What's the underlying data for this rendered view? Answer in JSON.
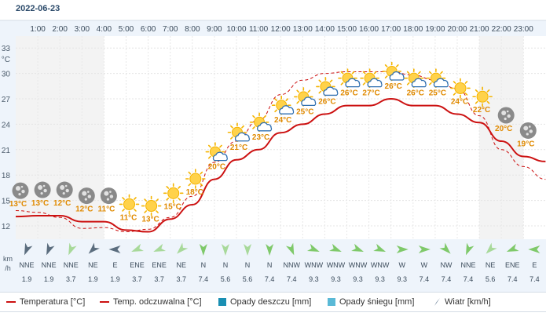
{
  "date": "2022-06-23",
  "colors": {
    "temperature_line": "#cc1111",
    "feels_like_line": "#cc1111",
    "rain": "#1a8fb3",
    "snow": "#5ab9d6",
    "wind_arrow": "#2b4a6a",
    "temp_label": "#e08a00",
    "band": "#eef4fb"
  },
  "chart_data": {
    "type": "line",
    "x": [
      "0:00",
      "1:00",
      "2:00",
      "3:00",
      "4:00",
      "5:00",
      "6:00",
      "7:00",
      "8:00",
      "9:00",
      "10:00",
      "11:00",
      "12:00",
      "13:00",
      "14:00",
      "15:00",
      "16:00",
      "17:00",
      "18:00",
      "19:00",
      "20:00",
      "21:00",
      "22:00",
      "23:00",
      "24:00"
    ],
    "hour_labels": [
      "1:00",
      "2:00",
      "3:00",
      "4:00",
      "5:00",
      "6:00",
      "7:00",
      "8:00",
      "9:00",
      "10:00",
      "11:00",
      "12:00",
      "13:00",
      "14:00",
      "15:00",
      "16:00",
      "17:00",
      "18:00",
      "19:00",
      "20:00",
      "21:00",
      "22:00",
      "23:00"
    ],
    "y_axis_unit": "°C",
    "y_ticks": [
      12,
      15,
      18,
      21,
      24,
      27,
      30,
      33
    ],
    "ylim": [
      9.5,
      36
    ],
    "series": [
      {
        "name": "Temperatura [°C]",
        "style": "solid",
        "values": [
          13.1,
          13.2,
          13.2,
          12.5,
          12.5,
          11.5,
          11.3,
          12.8,
          14.5,
          17.5,
          19.8,
          21.0,
          23.0,
          24.0,
          25.2,
          26.2,
          26.2,
          27.0,
          26.2,
          26.2,
          25.2,
          24.2,
          22.0,
          20.2,
          19.6
        ]
      },
      {
        "name": "Temp. odczuwalna [°C]",
        "style": "dashed",
        "values": [
          13.8,
          13.6,
          13.0,
          11.7,
          11.8,
          11.3,
          11.6,
          13.0,
          15.5,
          19.5,
          22.0,
          24.5,
          27.5,
          29.2,
          30.0,
          30.2,
          30.2,
          30.2,
          29.8,
          29.2,
          28.2,
          25.0,
          21.0,
          19.0,
          17.5
        ]
      }
    ],
    "icons": [
      {
        "time": "0:00",
        "icon": "moon-icon",
        "label": "13°C"
      },
      {
        "time": "1:00",
        "icon": "moon-icon",
        "label": "13°C"
      },
      {
        "time": "2:00",
        "icon": "moon-icon",
        "label": "12°C"
      },
      {
        "time": "3:00",
        "icon": "moon-icon",
        "label": "12°C"
      },
      {
        "time": "4:00",
        "icon": "moon-icon",
        "label": "11°C"
      },
      {
        "time": "5:00",
        "icon": "sun-icon",
        "label": "11°C"
      },
      {
        "time": "6:00",
        "icon": "sun-icon",
        "label": "13°C"
      },
      {
        "time": "7:00",
        "icon": "sun-icon",
        "label": "15°C"
      },
      {
        "time": "8:00",
        "icon": "sun-icon",
        "label": "18°C"
      },
      {
        "time": "9:00",
        "icon": "sun-cloud-icon",
        "label": "20°C"
      },
      {
        "time": "10:00",
        "icon": "sun-cloud-icon",
        "label": "21°C"
      },
      {
        "time": "11:00",
        "icon": "sun-cloud-icon",
        "label": "23°C"
      },
      {
        "time": "12:00",
        "icon": "sun-cloud-icon",
        "label": "24°C"
      },
      {
        "time": "13:00",
        "icon": "sun-cloud-icon",
        "label": "25°C"
      },
      {
        "time": "14:00",
        "icon": "sun-cloud-icon",
        "label": "26°C"
      },
      {
        "time": "15:00",
        "icon": "sun-cloud-icon",
        "label": "26°C"
      },
      {
        "time": "16:00",
        "icon": "sun-cloud-icon",
        "label": "27°C"
      },
      {
        "time": "17:00",
        "icon": "sun-cloud-icon",
        "label": "26°C"
      },
      {
        "time": "18:00",
        "icon": "sun-cloud-icon",
        "label": "26°C"
      },
      {
        "time": "19:00",
        "icon": "sun-cloud-icon",
        "label": "25°C"
      },
      {
        "time": "20:00",
        "icon": "sun-icon",
        "label": "24°C"
      },
      {
        "time": "21:00",
        "icon": "sun-icon",
        "label": "22°C"
      },
      {
        "time": "22:00",
        "icon": "moon-icon",
        "label": "20°C"
      },
      {
        "time": "23:00",
        "icon": "moon-icon",
        "label": "19°C"
      }
    ],
    "wind": {
      "unit_label": [
        "km",
        "/h"
      ],
      "direction": [
        "NNE",
        "NNE",
        "NNE",
        "NE",
        "E",
        "ENE",
        "ENE",
        "NE",
        "N",
        "N",
        "N",
        "N",
        "NNW",
        "WNW",
        "WNW",
        "WNW",
        "WNW",
        "W",
        "W",
        "NW",
        "NNE",
        "NE",
        "ENE",
        "E"
      ],
      "speed": [
        "1.9",
        "1.9",
        "3.7",
        "1.9",
        "1.9",
        "3.7",
        "3.7",
        "3.7",
        "7.4",
        "5.6",
        "5.6",
        "7.4",
        "7.4",
        "9.3",
        "9.3",
        "9.3",
        "9.3",
        "9.3",
        "7.4",
        "7.4",
        "7.4",
        "5.6",
        "7.4",
        "7.4"
      ]
    },
    "night_bands": [
      [
        "0:00",
        "4:00"
      ],
      [
        "21:00",
        "23:00"
      ]
    ],
    "grid": true,
    "legend_position": "bottom"
  },
  "legend": [
    {
      "label": "Temperatura [°C]",
      "kind": "line"
    },
    {
      "label": "Temp. odczuwalna [°C]",
      "kind": "line"
    },
    {
      "label": "Opady deszczu [mm]",
      "kind": "rain"
    },
    {
      "label": "Opady śniegu [mm]",
      "kind": "snow"
    },
    {
      "label": "Wiatr [km/h]",
      "kind": "wind"
    }
  ]
}
